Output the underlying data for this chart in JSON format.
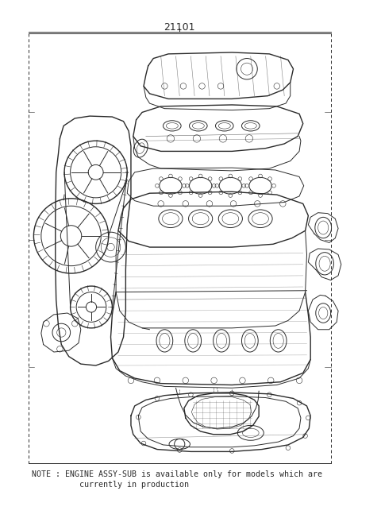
{
  "title": "21101",
  "note_line1": "NOTE : ENGINE ASSY-SUB is available only for models which are",
  "note_line2": "          currently in production",
  "bg_color": "#ffffff",
  "line_color": "#2a2a2a",
  "border_color": "#555555",
  "title_fontsize": 9,
  "note_fontsize": 7.2,
  "fig_width": 4.8,
  "fig_height": 6.57,
  "dpi": 100
}
